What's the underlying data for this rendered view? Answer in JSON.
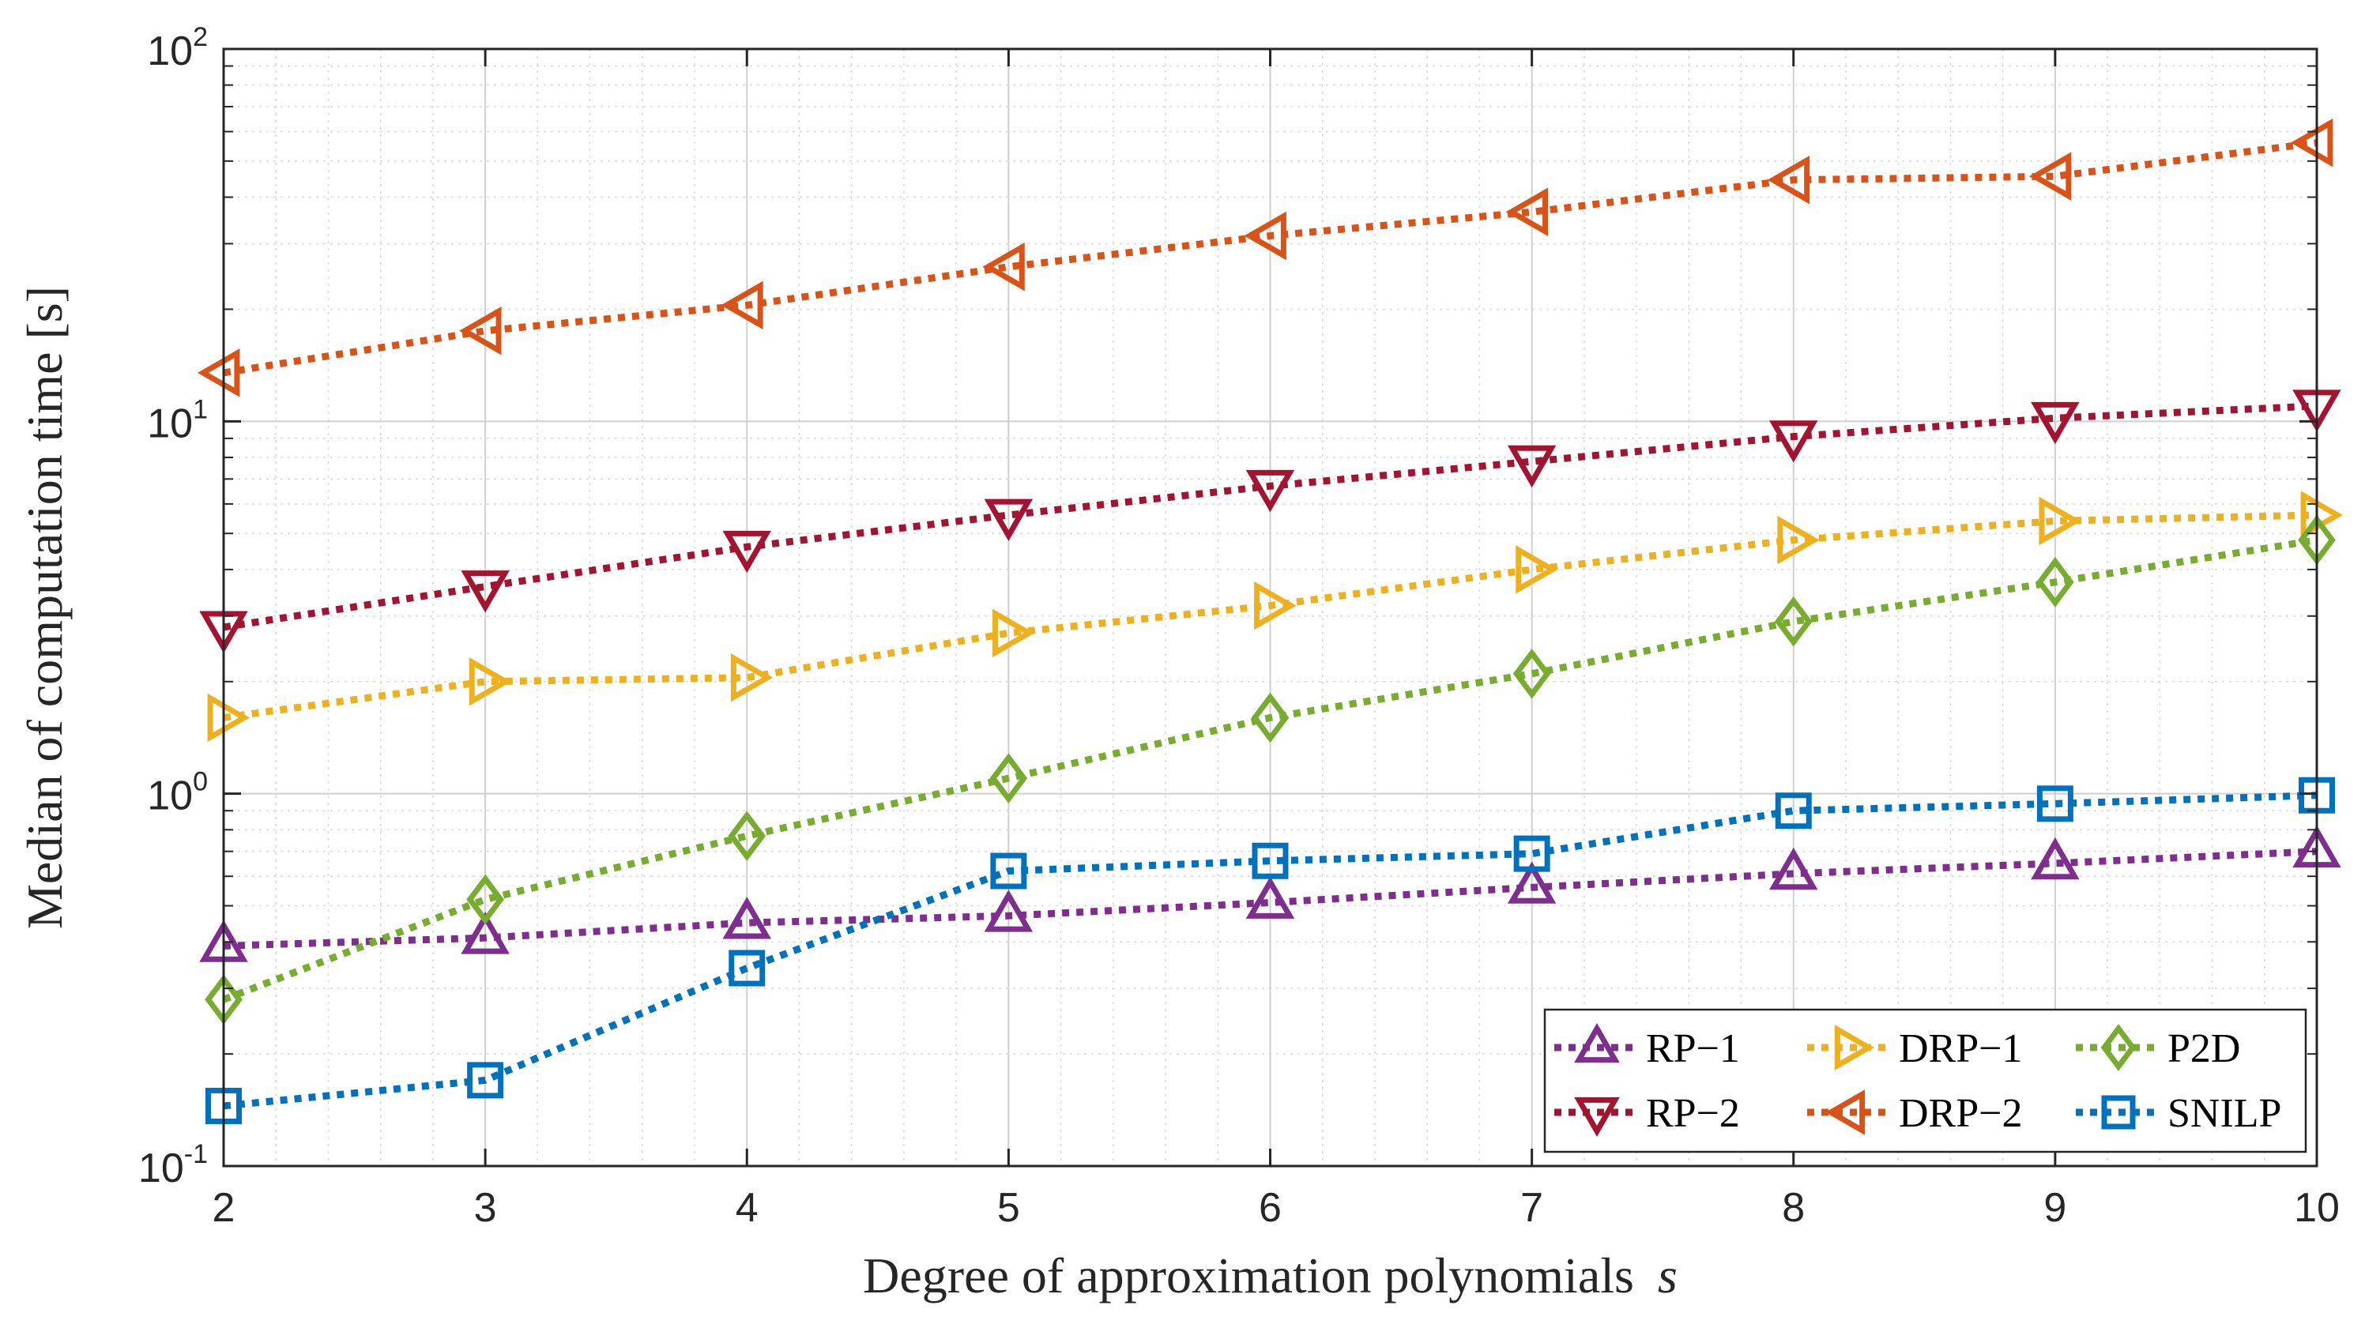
{
  "chart_data": {
    "type": "line",
    "xlabel": "Degree of approximation polynomials",
    "xlabel_var": "s",
    "ylabel": "Median of computation time [s]",
    "x": [
      2,
      3,
      4,
      5,
      6,
      7,
      8,
      9,
      10
    ],
    "xlim": [
      2,
      10
    ],
    "ylim": [
      0.1,
      100
    ],
    "yscale": "log",
    "grid": true,
    "minor_grid": true,
    "x_ticks": [
      "2",
      "3",
      "4",
      "5",
      "6",
      "7",
      "8",
      "9",
      "10"
    ],
    "y_ticks": [
      {
        "value": 0.1,
        "base": "10",
        "exp": "-1"
      },
      {
        "value": 1,
        "base": "10",
        "exp": "0"
      },
      {
        "value": 10,
        "base": "10",
        "exp": "1"
      },
      {
        "value": 100,
        "base": "10",
        "exp": "2"
      }
    ],
    "legend_position": "bottom-right",
    "series": [
      {
        "name": "RP−1",
        "marker": "triangle-up",
        "color": "#7E2F8E",
        "values": [
          0.39,
          0.41,
          0.45,
          0.47,
          0.51,
          0.56,
          0.61,
          0.65,
          0.7
        ]
      },
      {
        "name": "DRP−1",
        "marker": "triangle-right",
        "color": "#EDB120",
        "values": [
          1.6,
          2.0,
          2.05,
          2.7,
          3.2,
          4.0,
          4.8,
          5.4,
          5.6
        ]
      },
      {
        "name": "P2D",
        "marker": "diamond",
        "color": "#77AC30",
        "values": [
          0.28,
          0.52,
          0.77,
          1.1,
          1.6,
          2.1,
          2.9,
          3.7,
          4.8
        ]
      },
      {
        "name": "RP−2",
        "marker": "triangle-down",
        "color": "#A2142F",
        "values": [
          2.8,
          3.6,
          4.6,
          5.6,
          6.7,
          7.8,
          9.1,
          10.2,
          11.0
        ]
      },
      {
        "name": "DRP−2",
        "marker": "triangle-left",
        "color": "#D95319",
        "values": [
          13.5,
          17.5,
          20.5,
          26.0,
          31.5,
          36.5,
          44.5,
          45.5,
          56.0
        ]
      },
      {
        "name": "SNILP",
        "marker": "square",
        "color": "#0072BD",
        "values": [
          0.145,
          0.17,
          0.34,
          0.62,
          0.66,
          0.69,
          0.9,
          0.94,
          0.99
        ]
      }
    ]
  }
}
